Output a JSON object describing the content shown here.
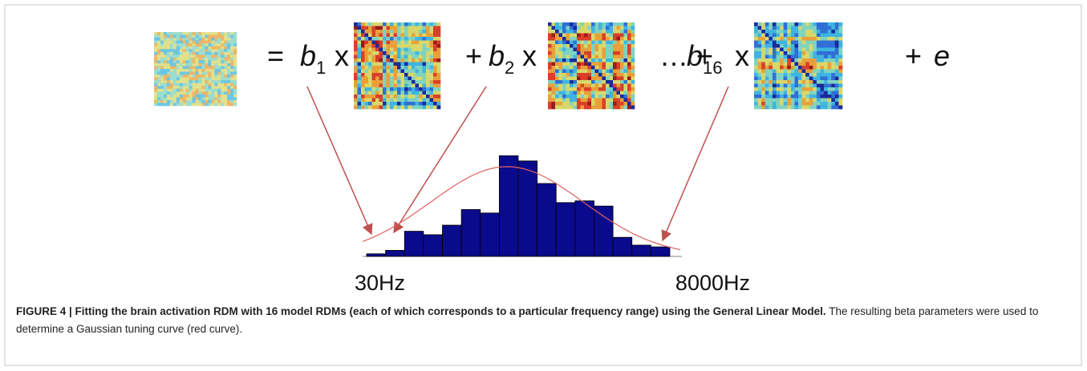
{
  "equation": [
    "=",
    "b",
    "1",
    "x",
    "+",
    "b",
    "2",
    "x",
    "… +",
    "b",
    "16",
    "x",
    "+",
    "e"
  ],
  "chart_data": {
    "type": "bar",
    "categories": [
      "30Hz",
      null,
      null,
      null,
      null,
      null,
      null,
      null,
      null,
      null,
      null,
      null,
      null,
      null,
      null,
      "8000Hz"
    ],
    "values": [
      3,
      7,
      29,
      25,
      36,
      54,
      50,
      116,
      110,
      84,
      62,
      64,
      58,
      22,
      13,
      11
    ],
    "color": "#0a0a8c",
    "ylim": [
      0,
      120
    ]
  },
  "caption": {
    "label": "FIGURE 4 | Fitting the brain activation RDM with 16 model RDMs (each of which corresponds to a particular frequency range) using the General Linear Model.",
    "text": " The resulting beta parameters were used to determine a Gaussian tuning curve (red curve)."
  }
}
